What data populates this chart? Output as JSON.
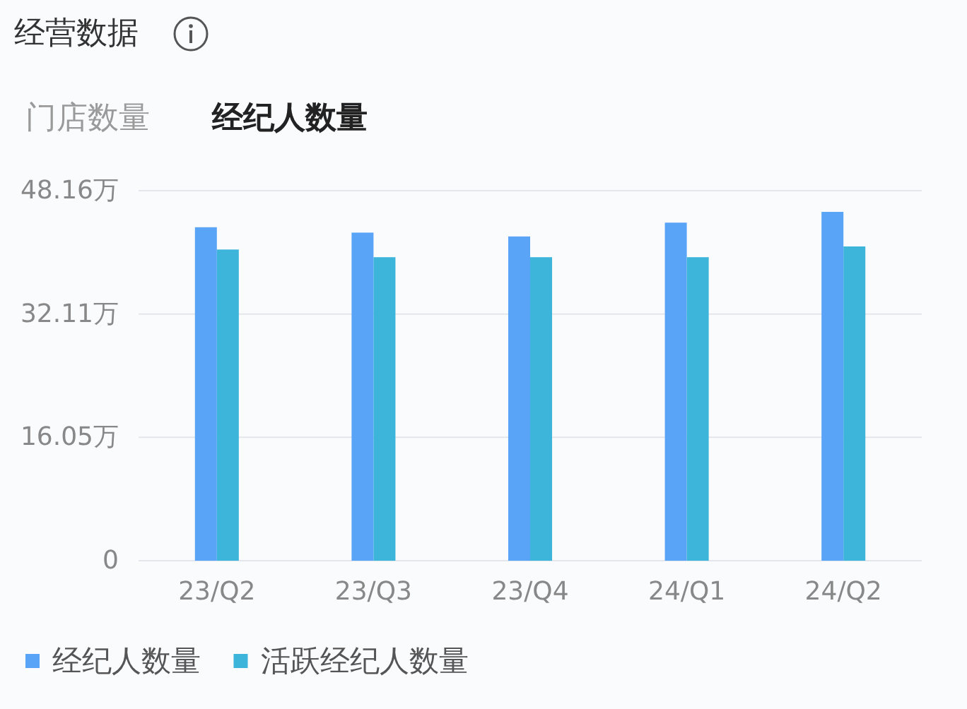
{
  "chart_data": {
    "type": "bar",
    "title": "经营数据",
    "subtitle": "经纪人数量",
    "annotations": [
      "门店数量"
    ],
    "categories": [
      "23/Q2",
      "23/Q3",
      "23/Q4",
      "24/Q1",
      "24/Q2"
    ],
    "series": [
      {
        "name": "经纪人数量",
        "color": "#5aa4f8",
        "values": [
          43.4,
          42.7,
          42.2,
          44.0,
          45.4
        ]
      },
      {
        "name": "活跃经纪人数量",
        "color": "#3db4d9",
        "values": [
          40.5,
          39.5,
          39.5,
          39.5,
          40.9
        ]
      }
    ],
    "ylim": [
      0,
      48.16
    ],
    "yticks": [
      0,
      {
        "value": 16.05,
        "label": "16.05万"
      },
      {
        "value": 32.11,
        "label": "32.11万"
      },
      {
        "value": 48.16,
        "label": "48.16万"
      }
    ],
    "grid": "y",
    "legend": "bottom left"
  }
}
